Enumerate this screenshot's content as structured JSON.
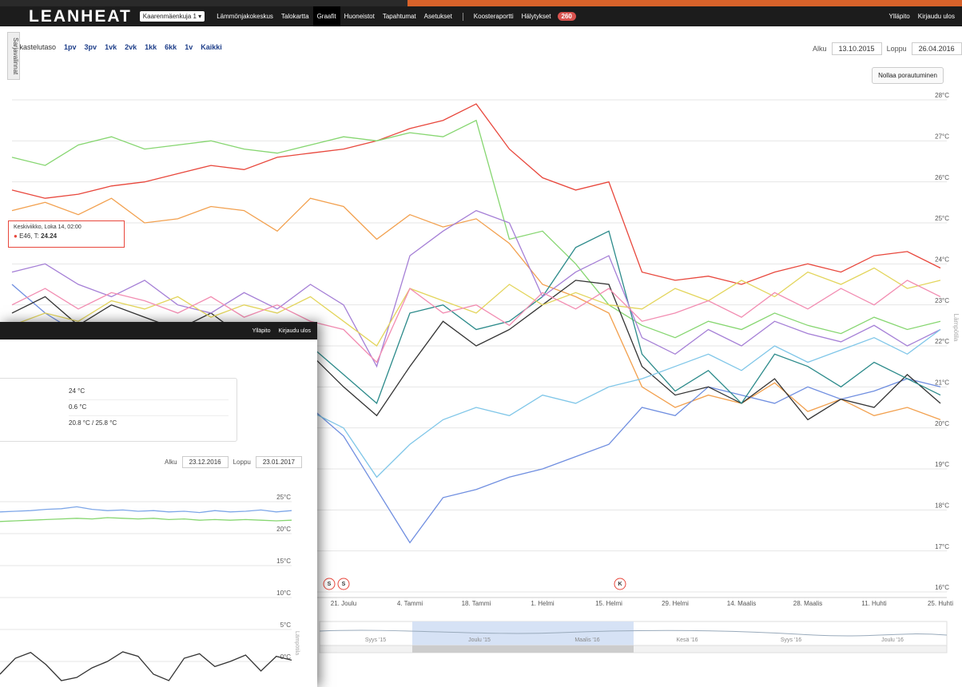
{
  "nav": {
    "brand": "LEANHEAT",
    "building": "Kaarenmäenkuja 1",
    "links": [
      "Lämmönjakokeskus",
      "Talokartta",
      "Graafit",
      "Huoneistot",
      "Tapahtumat",
      "Asetukset"
    ],
    "links2": [
      "Koosteraportti",
      "Hälytykset"
    ],
    "alarm_count": "260",
    "right": [
      "Ylläpito",
      "Kirjaudu ulos"
    ]
  },
  "side_tab": "Sarjavalinnat",
  "toolbar": {
    "label": "Tarkastelutaso",
    "ranges": [
      "1pv",
      "3pv",
      "1vk",
      "2vk",
      "1kk",
      "6kk",
      "1v",
      "Kaikki"
    ],
    "start_label": "Alku",
    "start": "13.10.2015",
    "end_label": "Loppu",
    "end": "26.04.2016",
    "reset": "Nollaa porautuminen"
  },
  "tooltip": {
    "title": "Keskiviikko, Loka 14, 02:00",
    "series": "E46",
    "label": "T:",
    "value": "24.24"
  },
  "flags": [
    "S",
    "S",
    "K"
  ],
  "navigator": [
    "Syys '15",
    "Joulu '15",
    "Maalis '16",
    "Kesä '16",
    "Syys '16",
    "Joulu '16"
  ],
  "window2": {
    "right": [
      "Ylläpito",
      "Kirjaudu ulos"
    ],
    "info_values": [
      "24 °C",
      "0.6 °C",
      "20.8 °C / 25.8 °C"
    ],
    "start_label": "Alku",
    "start": "23.12.2016",
    "end_label": "Loppu",
    "end": "23.01.2017"
  },
  "chart_data": [
    {
      "type": "line",
      "y_label": "Lämpötila",
      "categories": [
        null,
        null,
        null,
        null,
        null,
        null,
        null,
        null,
        null,
        null,
        "21. Joulu",
        null,
        "4. Tammi",
        null,
        "18. Tammi",
        null,
        "1. Helmi",
        null,
        "15. Helmi",
        null,
        "29. Helmi",
        null,
        "14. Maalis",
        null,
        "28. Maalis",
        null,
        "11. Huhti",
        null,
        "25. Huhti"
      ],
      "ylim": [
        16,
        28
      ],
      "yticks": [
        {
          "value": 16,
          "label": "16°C"
        },
        {
          "value": 17,
          "label": "17°C"
        },
        {
          "value": 18,
          "label": "18°C"
        },
        {
          "value": 19,
          "label": "19°C"
        },
        {
          "value": 20,
          "label": "20°C"
        },
        {
          "value": 21,
          "label": "21°C"
        },
        {
          "value": 22,
          "label": "22°C"
        },
        {
          "value": 23,
          "label": "23°C"
        },
        {
          "value": 24,
          "label": "24°C"
        },
        {
          "value": 25,
          "label": "25°C"
        },
        {
          "value": 26,
          "label": "26°C"
        },
        {
          "value": 27,
          "label": "27°C"
        },
        {
          "value": 28,
          "label": "28°C"
        }
      ],
      "grid": true,
      "series": [
        {
          "color": "#e8473c",
          "values": [
            25.8,
            25.6,
            25.7,
            25.9,
            26.0,
            26.2,
            26.4,
            26.3,
            26.6,
            26.7,
            26.8,
            27.0,
            27.3,
            27.5,
            27.9,
            26.8,
            26.1,
            25.8,
            26.0,
            23.8,
            23.6,
            23.7,
            23.5,
            23.8,
            24.0,
            23.8,
            24.2,
            24.3,
            23.9
          ]
        },
        {
          "color": "#86d670",
          "values": [
            26.6,
            26.4,
            26.9,
            27.1,
            26.8,
            26.9,
            27.0,
            26.8,
            26.7,
            26.9,
            27.1,
            27.0,
            27.2,
            27.1,
            27.5,
            24.6,
            24.8,
            24.0,
            23.0,
            22.5,
            22.2,
            22.6,
            22.4,
            22.8,
            22.5,
            22.3,
            22.7,
            22.4,
            22.6
          ]
        },
        {
          "color": "#f2a04e",
          "values": [
            25.3,
            25.5,
            25.2,
            25.6,
            25.0,
            25.1,
            25.4,
            25.3,
            24.8,
            25.6,
            25.4,
            24.6,
            25.2,
            24.9,
            25.1,
            24.5,
            23.5,
            23.2,
            22.8,
            21.0,
            20.5,
            20.8,
            20.6,
            21.1,
            20.4,
            20.7,
            20.3,
            20.5,
            20.2
          ]
        },
        {
          "color": "#6f8ee0",
          "values": [
            23.5,
            22.8,
            22.3,
            22.0,
            21.8,
            21.5,
            21.2,
            21.0,
            20.8,
            20.5,
            19.8,
            18.5,
            17.2,
            18.3,
            18.5,
            18.8,
            19.0,
            19.3,
            19.6,
            20.5,
            20.3,
            21.0,
            20.8,
            20.6,
            21.0,
            20.7,
            20.9,
            21.2,
            21.0
          ]
        },
        {
          "color": "#333333",
          "values": [
            22.8,
            23.2,
            22.5,
            23.0,
            22.7,
            22.4,
            22.8,
            22.2,
            22.0,
            21.8,
            21.0,
            20.3,
            21.5,
            22.6,
            22.0,
            22.4,
            23.0,
            23.6,
            23.5,
            21.5,
            20.8,
            21.0,
            20.6,
            21.2,
            20.2,
            20.7,
            20.5,
            21.3,
            20.6
          ]
        },
        {
          "color": "#2b8a8a",
          "values": [
            22.0,
            22.4,
            21.8,
            22.3,
            22.0,
            21.6,
            22.2,
            21.8,
            21.5,
            22.0,
            21.3,
            20.6,
            22.8,
            23.0,
            22.4,
            22.6,
            23.2,
            24.4,
            24.8,
            21.8,
            20.9,
            21.4,
            20.6,
            21.8,
            21.5,
            21.0,
            21.6,
            21.2,
            20.8
          ]
        },
        {
          "color": "#a57fd6",
          "values": [
            23.8,
            24.0,
            23.5,
            23.2,
            23.6,
            23.0,
            22.8,
            23.3,
            22.9,
            23.5,
            23.0,
            21.5,
            24.2,
            24.8,
            25.3,
            25.0,
            23.2,
            23.8,
            24.2,
            22.2,
            21.8,
            22.4,
            22.0,
            22.6,
            22.3,
            22.1,
            22.5,
            22.0,
            22.4
          ]
        },
        {
          "color": "#e3d55c",
          "values": [
            22.5,
            22.8,
            22.6,
            23.1,
            22.9,
            23.2,
            22.7,
            23.0,
            22.8,
            23.2,
            22.6,
            22.0,
            23.4,
            23.1,
            22.8,
            23.5,
            23.0,
            23.3,
            23.0,
            22.9,
            23.4,
            23.1,
            23.6,
            23.2,
            23.8,
            23.5,
            23.9,
            23.4,
            23.6
          ]
        },
        {
          "color": "#7fc6e8",
          "values": [
            21.5,
            21.2,
            21.6,
            21.0,
            21.4,
            20.8,
            21.2,
            20.6,
            20.9,
            20.4,
            20.0,
            18.8,
            19.6,
            20.2,
            20.5,
            20.3,
            20.8,
            20.6,
            21.0,
            21.2,
            21.5,
            21.8,
            21.4,
            22.0,
            21.6,
            21.9,
            22.2,
            21.8,
            22.4
          ]
        },
        {
          "color": "#f28cb1",
          "values": [
            23.0,
            23.4,
            22.9,
            23.3,
            23.1,
            22.8,
            23.2,
            22.7,
            23.0,
            22.6,
            22.4,
            21.6,
            23.4,
            22.8,
            23.0,
            22.5,
            23.3,
            22.9,
            23.4,
            22.6,
            22.8,
            23.1,
            22.7,
            23.3,
            22.9,
            23.4,
            23.0,
            23.6,
            23.2
          ]
        }
      ]
    },
    {
      "type": "line",
      "y_label": "Lämpötila",
      "ylim": [
        -4,
        29
      ],
      "yticks": [
        {
          "value": 0,
          "label": "0°C"
        },
        {
          "value": 5,
          "label": "5°C"
        },
        {
          "value": 10,
          "label": "10°C"
        },
        {
          "value": 15,
          "label": "15°C"
        },
        {
          "value": 20,
          "label": "20°C"
        },
        {
          "value": 25,
          "label": "25°C"
        }
      ],
      "grid": true,
      "series": [
        {
          "color": "#7ea7e8",
          "values": [
            23.4,
            23.5,
            23.6,
            23.8,
            23.9,
            24.2,
            23.8,
            23.6,
            23.7,
            23.5,
            23.6,
            23.4,
            23.5,
            23.3,
            23.6,
            23.4,
            23.5,
            23.7,
            23.4,
            23.6
          ]
        },
        {
          "color": "#86d670",
          "values": [
            21.9,
            22.0,
            22.1,
            22.2,
            22.3,
            22.4,
            22.3,
            22.5,
            22.4,
            22.3,
            22.4,
            22.2,
            22.3,
            22.1,
            22.2,
            22.1,
            22.2,
            22.1,
            22.0,
            22.1
          ]
        },
        {
          "color": "#333333",
          "values": [
            -2,
            0.5,
            1.4,
            -0.5,
            -3,
            -2.5,
            -1,
            0,
            1.5,
            0.8,
            -2,
            -3,
            0.5,
            1.2,
            -0.8,
            0,
            1.0,
            -1.5,
            0.8,
            0.2
          ]
        }
      ]
    }
  ]
}
